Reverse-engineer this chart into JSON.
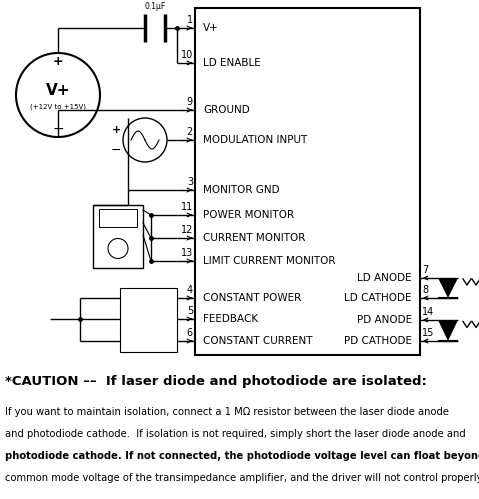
{
  "fig_width": 4.79,
  "fig_height": 4.99,
  "dpi": 100,
  "bg_color": "#ffffff",
  "caution_title": "*CAUTION ––  If laser diode and photodiode are isolated:",
  "caution_line1": "If you want to maintain isolation, connect a 1 MΩ resistor between the laser diode anode",
  "caution_line2": "and photodiode cathode.  If isolation is not required, simply short the laser diode anode and",
  "caution_line3": "photodiode cathode. If not connected, the photodiode voltage level can float beyond the input",
  "caution_line4": "common mode voltage of the transimpedance amplifier, and the driver will not control properly."
}
